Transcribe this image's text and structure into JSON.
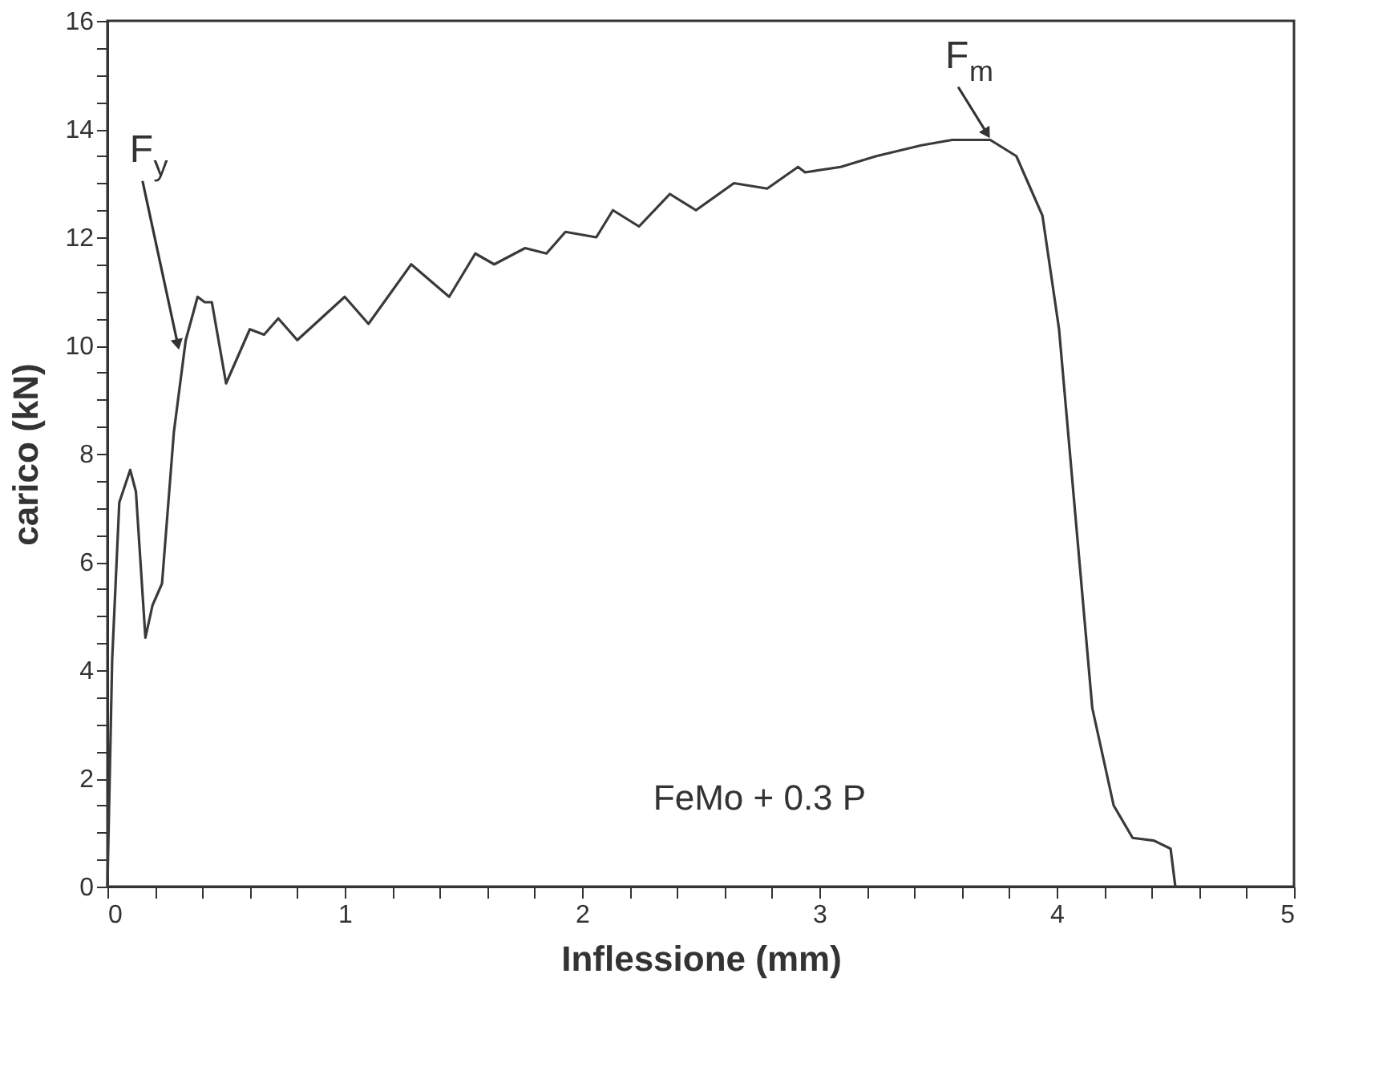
{
  "chart_data": {
    "type": "line",
    "xlabel": "Inflessione (mm)",
    "ylabel": "carico (kN)",
    "xlim": [
      0,
      5
    ],
    "ylim": [
      0,
      16
    ],
    "xticks": [
      0,
      {
        "value": 0.2,
        "label": null
      },
      {
        "value": 0.4,
        "label": null
      },
      {
        "value": 0.6,
        "label": null
      },
      {
        "value": 0.8,
        "label": null
      },
      1,
      {
        "value": 1.2,
        "label": null
      },
      {
        "value": 1.4,
        "label": null
      },
      {
        "value": 1.6,
        "label": null
      },
      {
        "value": 1.8,
        "label": null
      },
      2,
      {
        "value": 2.2,
        "label": null
      },
      {
        "value": 2.4,
        "label": null
      },
      {
        "value": 2.6,
        "label": null
      },
      {
        "value": 2.8,
        "label": null
      },
      3,
      {
        "value": 3.2,
        "label": null
      },
      {
        "value": 3.4,
        "label": null
      },
      {
        "value": 3.6,
        "label": null
      },
      {
        "value": 3.8,
        "label": null
      },
      4,
      {
        "value": 4.2,
        "label": null
      },
      {
        "value": 4.4,
        "label": null
      },
      {
        "value": 4.6,
        "label": null
      },
      {
        "value": 4.8,
        "label": null
      },
      5
    ],
    "yticks": [
      0,
      {
        "value": 0.5,
        "label": null
      },
      {
        "value": 1,
        "label": null
      },
      {
        "value": 1.5,
        "label": null
      },
      2,
      {
        "value": 2.5,
        "label": null
      },
      {
        "value": 3,
        "label": null
      },
      {
        "value": 3.5,
        "label": null
      },
      4,
      {
        "value": 4.5,
        "label": null
      },
      {
        "value": 5,
        "label": null
      },
      {
        "value": 5.5,
        "label": null
      },
      6,
      {
        "value": 6.5,
        "label": null
      },
      {
        "value": 7,
        "label": null
      },
      {
        "value": 7.5,
        "label": null
      },
      8,
      {
        "value": 8.5,
        "label": null
      },
      {
        "value": 9,
        "label": null
      },
      {
        "value": 9.5,
        "label": null
      },
      10,
      {
        "value": 10.5,
        "label": null
      },
      {
        "value": 11,
        "label": null
      },
      {
        "value": 11.5,
        "label": null
      },
      12,
      {
        "value": 12.5,
        "label": null
      },
      {
        "value": 13,
        "label": null
      },
      {
        "value": 13.5,
        "label": null
      },
      14,
      {
        "value": 14.5,
        "label": null
      },
      {
        "value": 15,
        "label": null
      },
      {
        "value": 15.5,
        "label": null
      },
      16
    ],
    "grid": false,
    "marker": "none",
    "line_style": "solid",
    "series": [
      {
        "color": "#3a3a3a",
        "x": [
          0,
          0.02,
          0.05,
          0.096,
          0.12,
          0.16,
          0.19,
          0.23,
          0.28,
          0.33,
          0.38,
          0.41,
          0.44,
          0.5,
          0.6,
          0.66,
          0.72,
          0.8,
          1.0,
          1.1,
          1.28,
          1.44,
          1.55,
          1.63,
          1.76,
          1.85,
          1.93,
          2.06,
          2.13,
          2.24,
          2.37,
          2.48,
          2.64,
          2.78,
          2.91,
          2.94,
          3.09,
          3.24,
          3.43,
          3.56,
          3.72,
          3.83,
          3.89,
          3.94,
          4.01,
          4.08,
          4.15,
          4.24,
          4.32,
          4.41,
          4.48,
          4.5
        ],
        "values": [
          0,
          4.2,
          7.1,
          7.7,
          7.3,
          4.6,
          5.2,
          5.6,
          8.4,
          10.1,
          10.9,
          10.8,
          10.8,
          9.3,
          10.3,
          10.2,
          10.5,
          10.1,
          10.9,
          10.4,
          11.5,
          10.9,
          11.7,
          11.5,
          11.8,
          11.7,
          12.1,
          12.0,
          12.5,
          12.2,
          12.8,
          12.5,
          13.0,
          12.9,
          13.3,
          13.2,
          13.3,
          13.5,
          13.7,
          13.8,
          13.8,
          13.5,
          12.9,
          12.4,
          10.3,
          6.8,
          3.3,
          1.5,
          0.9,
          0.85,
          0.7,
          0
        ]
      }
    ],
    "annotations": [
      {
        "text": "F$_{y}$",
        "x": 0.31,
        "y": 9.9
      },
      {
        "text": "F$_{m}$",
        "x": 3.72,
        "y": 13.8
      },
      "FeMo + 0.3 P"
    ]
  }
}
